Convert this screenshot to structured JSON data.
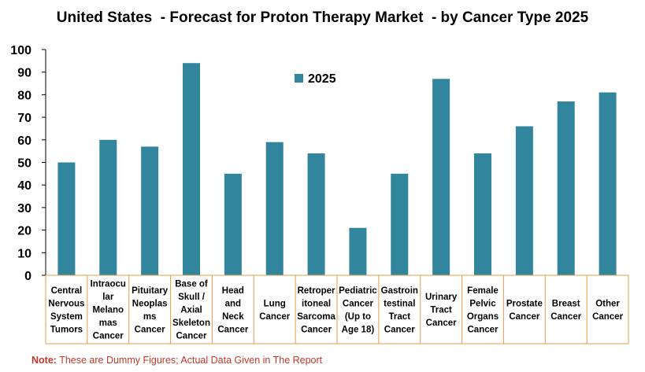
{
  "chart_data": {
    "type": "bar",
    "title": "United States  - Forecast for Proton Therapy Market  - by Cancer Type 2025",
    "xlabel": "",
    "ylabel": "",
    "ylim": [
      0,
      100
    ],
    "yticks": [
      0,
      10,
      20,
      30,
      40,
      50,
      60,
      70,
      80,
      90,
      100
    ],
    "legend": {
      "position": "top-center",
      "entries": [
        "2025"
      ]
    },
    "categories": [
      [
        "Central",
        "Nervous",
        "System",
        "Tumors"
      ],
      [
        "Intraocu",
        "lar",
        "Melano",
        "mas",
        "Cancer"
      ],
      [
        "Pituitary",
        "Neoplas",
        "ms",
        "Cancer"
      ],
      [
        "Base of",
        "Skull /",
        "Axial",
        "Skeleton",
        "Cancer"
      ],
      [
        "Head",
        "and",
        "Neck",
        "Cancer"
      ],
      [
        "Lung",
        "Cancer"
      ],
      [
        "Retroper",
        "itoneal",
        "Sarcoma",
        "Cancer"
      ],
      [
        "Pediatric",
        "Cancer",
        "(Up to",
        "Age 18)"
      ],
      [
        "Gastroin",
        "testinal",
        "Tract",
        "Cancer"
      ],
      [
        "Urinary",
        "Tract",
        "Cancer"
      ],
      [
        "Female",
        "Pelvic",
        "Organs",
        "Cancer"
      ],
      [
        "Prostate",
        "Cancer"
      ],
      [
        "Breast",
        "Cancer"
      ],
      [
        "Other",
        "Cancer"
      ]
    ],
    "series": [
      {
        "name": "2025",
        "values": [
          50,
          60,
          57,
          94,
          45,
          59,
          54,
          21,
          45,
          87,
          54,
          66,
          77,
          81
        ]
      }
    ],
    "colors": {
      "bar": "#31859c",
      "category_border": "#e59c4a",
      "axis": "#000000"
    }
  },
  "note": {
    "label": "Note:",
    "text": " These are Dummy Figures; Actual Data Given in The Report"
  }
}
